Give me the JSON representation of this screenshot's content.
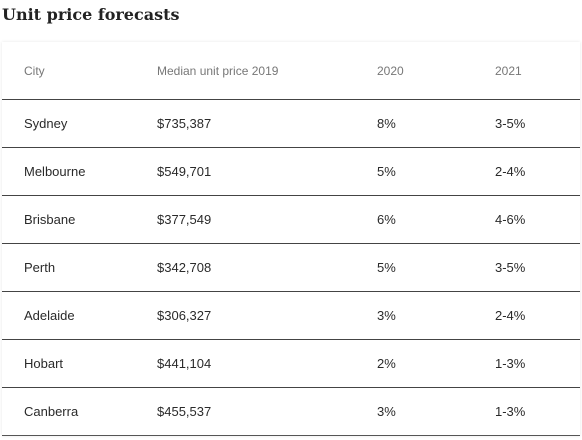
{
  "title": "Unit price forecasts",
  "table": {
    "headers": [
      "City",
      "Median unit price 2019",
      "2020",
      "2021"
    ],
    "rows": [
      [
        "Sydney",
        "$735,387",
        "8%",
        "3-5%"
      ],
      [
        "Melbourne",
        "$549,701",
        "5%",
        "2-4%"
      ],
      [
        "Brisbane",
        "$377,549",
        "6%",
        "4-6%"
      ],
      [
        "Perth",
        "$342,708",
        "5%",
        "3-5%"
      ],
      [
        "Adelaide",
        "$306,327",
        "3%",
        "2-4%"
      ],
      [
        "Hobart",
        "$441,104",
        "2%",
        "1-3%"
      ],
      [
        "Canberra",
        "$455,537",
        "3%",
        "1-3%"
      ]
    ]
  }
}
